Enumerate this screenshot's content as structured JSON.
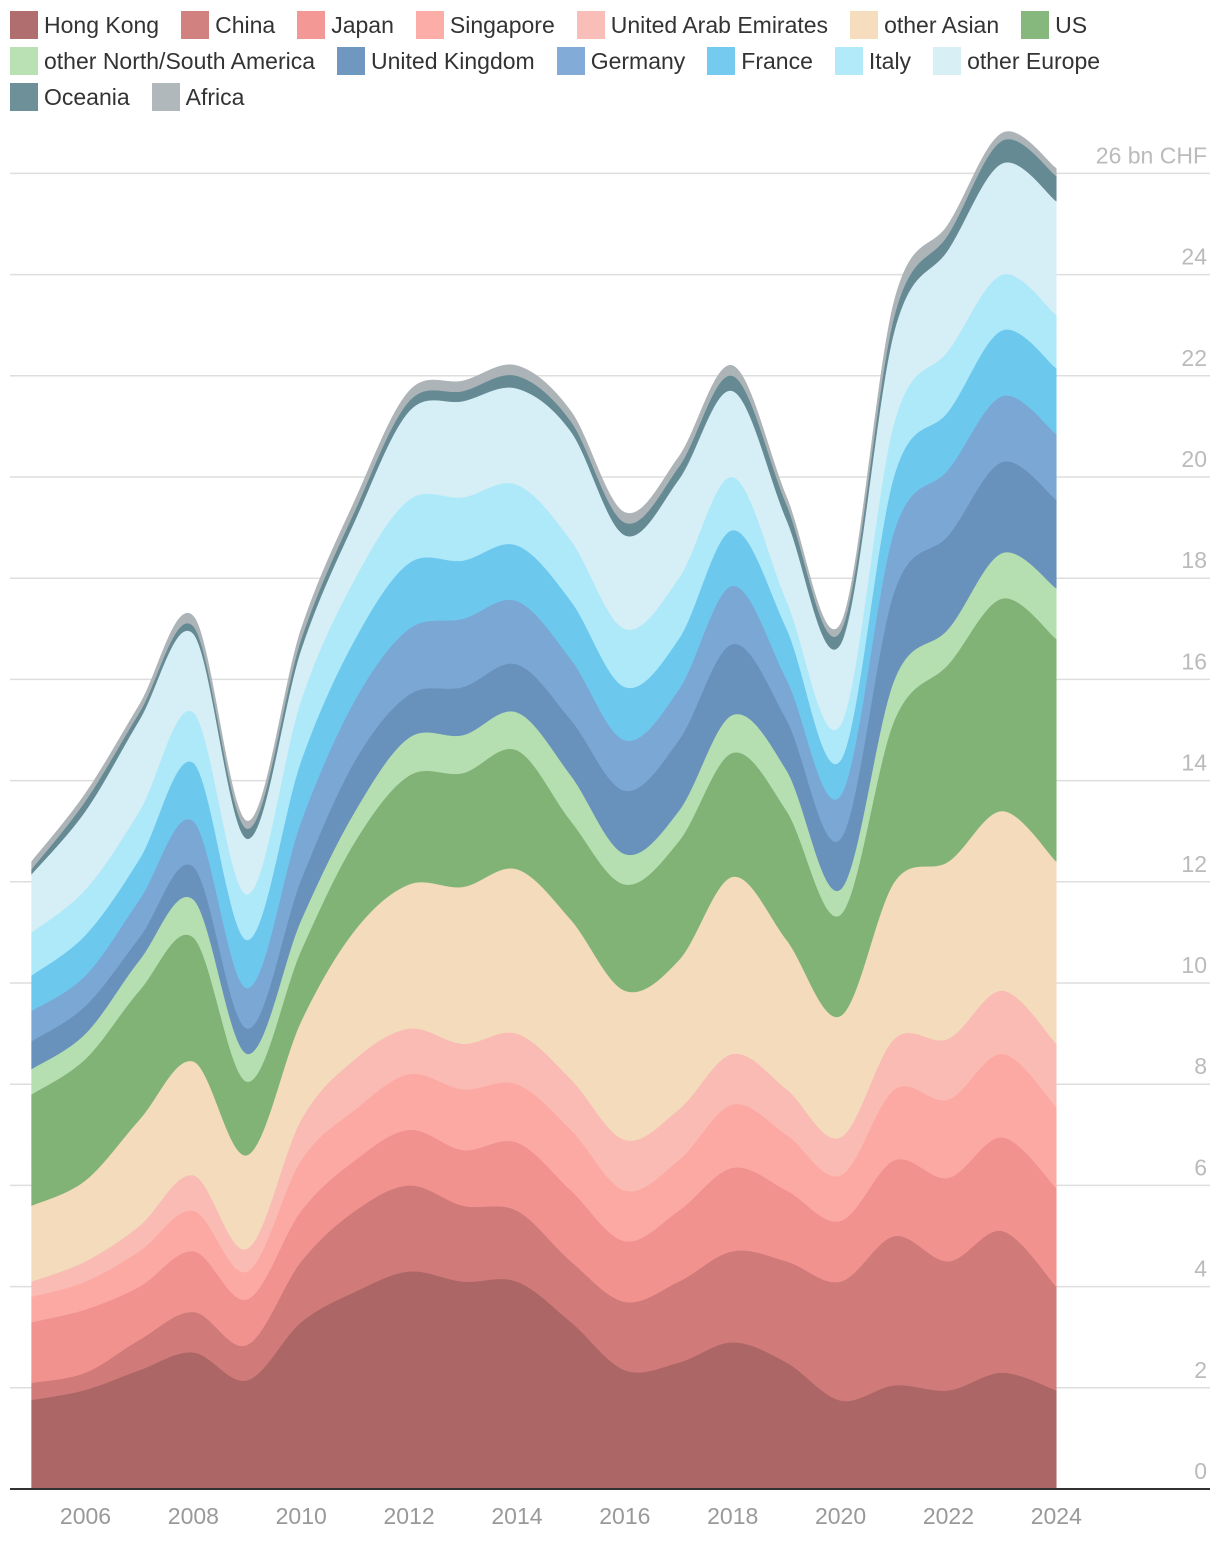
{
  "chart_data": {
    "type": "stacked-area",
    "x": [
      2005,
      2006,
      2007,
      2008,
      2009,
      2010,
      2011,
      2012,
      2013,
      2014,
      2015,
      2016,
      2017,
      2018,
      2019,
      2020,
      2021,
      2022,
      2023,
      2024
    ],
    "series": [
      {
        "name": "Hong Kong",
        "color": "#ad6666",
        "values": [
          1.76,
          1.96,
          2.35,
          2.7,
          2.15,
          3.3,
          3.9,
          4.3,
          4.1,
          4.1,
          3.3,
          2.35,
          2.5,
          2.9,
          2.5,
          1.75,
          2.05,
          1.95,
          2.3,
          1.95
        ]
      },
      {
        "name": "China",
        "color": "#d07a7a",
        "values": [
          0.34,
          0.34,
          0.6,
          0.8,
          0.7,
          1.2,
          1.6,
          1.7,
          1.5,
          1.4,
          1.2,
          1.35,
          1.6,
          1.8,
          2.0,
          2.35,
          2.95,
          2.55,
          2.8,
          2.05
        ]
      },
      {
        "name": "Japan",
        "color": "#f2928e",
        "values": [
          1.2,
          1.25,
          1.05,
          1.2,
          0.9,
          1.0,
          1.0,
          1.1,
          1.1,
          1.35,
          1.4,
          1.2,
          1.4,
          1.65,
          1.4,
          1.2,
          1.5,
          1.65,
          1.85,
          1.95
        ]
      },
      {
        "name": "Singapore",
        "color": "#fda9a3",
        "values": [
          0.5,
          0.55,
          0.7,
          0.8,
          0.55,
          1.0,
          1.0,
          1.1,
          1.2,
          1.15,
          1.2,
          1.0,
          1.0,
          1.25,
          1.1,
          0.9,
          1.4,
          1.55,
          1.65,
          1.6
        ]
      },
      {
        "name": "United Arab Emirates",
        "color": "#f9bbb3",
        "values": [
          0.3,
          0.4,
          0.5,
          0.7,
          0.45,
          0.8,
          1.0,
          0.9,
          0.9,
          1.0,
          1.0,
          1.0,
          1.0,
          1.0,
          0.9,
          0.75,
          1.0,
          1.2,
          1.25,
          1.25
        ]
      },
      {
        "name": "other Asian",
        "color": "#f4dbbb",
        "values": [
          1.5,
          1.6,
          2.1,
          2.25,
          1.85,
          1.95,
          2.55,
          2.85,
          3.1,
          3.25,
          3.15,
          2.95,
          2.95,
          3.5,
          2.95,
          2.4,
          3.1,
          3.5,
          3.55,
          3.6
        ]
      },
      {
        "name": "US",
        "color": "#80b375",
        "values": [
          2.2,
          2.4,
          2.55,
          2.45,
          1.45,
          1.4,
          1.75,
          2.15,
          2.25,
          2.35,
          1.95,
          2.1,
          2.35,
          2.45,
          2.55,
          2.0,
          3.2,
          3.9,
          4.2,
          4.4
        ]
      },
      {
        "name": "other North/South America",
        "color": "#b5dfb0",
        "values": [
          0.5,
          0.5,
          0.6,
          0.75,
          0.55,
          0.6,
          0.6,
          0.75,
          0.75,
          0.75,
          0.9,
          0.6,
          0.6,
          0.75,
          0.8,
          0.5,
          0.8,
          0.7,
          0.9,
          1.0
        ]
      },
      {
        "name": "United Kingdom",
        "color": "#6891bc",
        "values": [
          0.55,
          0.55,
          0.45,
          0.65,
          0.5,
          0.8,
          1.0,
          0.85,
          0.95,
          0.95,
          1.1,
          1.25,
          1.4,
          1.4,
          1.0,
          1.0,
          1.75,
          1.85,
          1.8,
          1.75
        ]
      },
      {
        "name": "Germany",
        "color": "#7ba7d5",
        "values": [
          0.6,
          0.6,
          0.75,
          0.9,
          0.8,
          1.15,
          1.2,
          1.3,
          1.35,
          1.25,
          1.2,
          1.0,
          1.0,
          1.15,
          0.8,
          0.85,
          1.2,
          1.3,
          1.3,
          1.3
        ]
      },
      {
        "name": "France",
        "color": "#6dc8ee",
        "values": [
          0.7,
          0.8,
          0.8,
          1.15,
          0.95,
          1.2,
          1.2,
          1.3,
          1.15,
          1.1,
          1.15,
          1.05,
          1.0,
          1.1,
          1.0,
          0.7,
          1.1,
          1.15,
          1.3,
          1.3
        ]
      },
      {
        "name": "Italy",
        "color": "#aee9fa",
        "values": [
          0.85,
          0.9,
          0.95,
          1.0,
          0.9,
          1.2,
          1.2,
          1.25,
          1.25,
          1.2,
          1.2,
          1.15,
          1.2,
          1.05,
          0.55,
          0.7,
          1.05,
          1.2,
          1.1,
          1.05
        ]
      },
      {
        "name": "other Europe",
        "color": "#d6eef5",
        "values": [
          1.15,
          1.55,
          1.8,
          1.55,
          1.1,
          1.0,
          1.15,
          1.75,
          1.9,
          1.9,
          2.15,
          1.85,
          1.95,
          1.7,
          1.6,
          1.6,
          1.8,
          2.0,
          2.2,
          2.25
        ]
      },
      {
        "name": "Oceania",
        "color": "#668a94",
        "values": [
          0.1,
          0.2,
          0.15,
          0.15,
          0.2,
          0.2,
          0.2,
          0.2,
          0.2,
          0.25,
          0.2,
          0.25,
          0.25,
          0.3,
          0.3,
          0.25,
          0.3,
          0.3,
          0.45,
          0.5
        ]
      },
      {
        "name": "Africa",
        "color": "#adb4b7",
        "values": [
          0.15,
          0.15,
          0.15,
          0.2,
          0.15,
          0.2,
          0.2,
          0.2,
          0.2,
          0.2,
          0.2,
          0.2,
          0.2,
          0.2,
          0.15,
          0.15,
          0.3,
          0.2,
          0.15,
          0.15
        ]
      }
    ],
    "xlim": [
      2004.6,
      2026.85
    ],
    "xticks": [
      2006,
      2008,
      2010,
      2012,
      2014,
      2016,
      2018,
      2020,
      2022,
      2024
    ],
    "ylim": [
      0,
      27
    ],
    "yticks": [
      0,
      2,
      4,
      6,
      8,
      10,
      12,
      14,
      16,
      18,
      20,
      22,
      24,
      {
        "value": 26,
        "label": "26 bn CHF"
      }
    ],
    "grid": true,
    "legend": "top"
  }
}
